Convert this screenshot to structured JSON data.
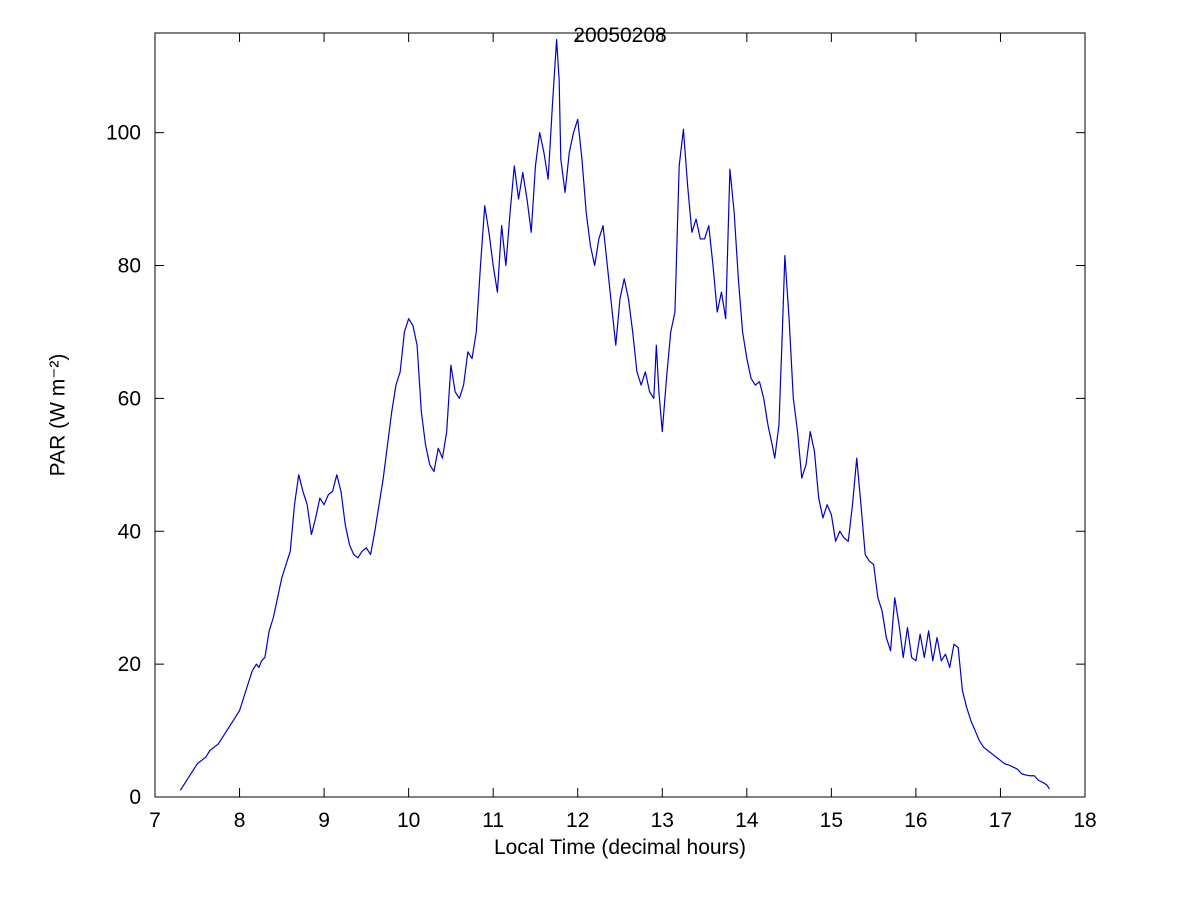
{
  "chart_data": {
    "type": "line",
    "title": "20050208",
    "xlabel": "Local Time (decimal hours)",
    "ylabel": "PAR (W m⁻²)",
    "xlim": [
      7,
      18
    ],
    "ylim": [
      0,
      115
    ],
    "xticks": [
      7,
      8,
      9,
      10,
      11,
      12,
      13,
      14,
      15,
      16,
      17,
      18
    ],
    "yticks": [
      0,
      20,
      40,
      60,
      80,
      100
    ],
    "grid": false,
    "legend": "none",
    "line_color": "#0000CC",
    "x": [
      7.3,
      7.35,
      7.4,
      7.45,
      7.5,
      7.55,
      7.6,
      7.65,
      7.7,
      7.75,
      7.8,
      7.85,
      7.9,
      7.95,
      8.0,
      8.05,
      8.1,
      8.15,
      8.2,
      8.23,
      8.26,
      8.3,
      8.35,
      8.4,
      8.45,
      8.5,
      8.55,
      8.6,
      8.65,
      8.7,
      8.75,
      8.8,
      8.85,
      8.9,
      8.95,
      9.0,
      9.05,
      9.1,
      9.15,
      9.2,
      9.25,
      9.3,
      9.35,
      9.4,
      9.45,
      9.5,
      9.55,
      9.6,
      9.65,
      9.7,
      9.75,
      9.8,
      9.85,
      9.9,
      9.95,
      10.0,
      10.05,
      10.1,
      10.15,
      10.2,
      10.25,
      10.3,
      10.35,
      10.4,
      10.45,
      10.5,
      10.55,
      10.6,
      10.65,
      10.7,
      10.75,
      10.8,
      10.85,
      10.9,
      10.95,
      11.0,
      11.05,
      11.1,
      11.15,
      11.2,
      11.25,
      11.3,
      11.35,
      11.4,
      11.45,
      11.5,
      11.55,
      11.6,
      11.65,
      11.7,
      11.75,
      11.78,
      11.8,
      11.85,
      11.9,
      11.95,
      12.0,
      12.05,
      12.1,
      12.15,
      12.2,
      12.25,
      12.3,
      12.35,
      12.4,
      12.45,
      12.5,
      12.55,
      12.6,
      12.65,
      12.7,
      12.75,
      12.8,
      12.85,
      12.9,
      12.93,
      12.96,
      13.0,
      13.05,
      13.1,
      13.15,
      13.2,
      13.25,
      13.3,
      13.35,
      13.4,
      13.45,
      13.5,
      13.55,
      13.6,
      13.65,
      13.7,
      13.75,
      13.8,
      13.85,
      13.9,
      13.95,
      14.0,
      14.05,
      14.1,
      14.15,
      14.2,
      14.25,
      14.3,
      14.33,
      14.38,
      14.42,
      14.45,
      14.5,
      14.55,
      14.6,
      14.65,
      14.7,
      14.75,
      14.8,
      14.85,
      14.9,
      14.95,
      15.0,
      15.05,
      15.1,
      15.15,
      15.2,
      15.25,
      15.3,
      15.35,
      15.4,
      15.45,
      15.5,
      15.55,
      15.6,
      15.65,
      15.7,
      15.75,
      15.8,
      15.85,
      15.9,
      15.95,
      16.0,
      16.05,
      16.1,
      16.15,
      16.2,
      16.25,
      16.3,
      16.35,
      16.4,
      16.45,
      16.5,
      16.55,
      16.6,
      16.65,
      16.7,
      16.75,
      16.8,
      16.85,
      16.9,
      16.95,
      17.0,
      17.05,
      17.1,
      17.15,
      17.2,
      17.25,
      17.3,
      17.35,
      17.4,
      17.45,
      17.5,
      17.55,
      17.58
    ],
    "y": [
      1,
      2,
      3,
      4,
      5,
      5.5,
      6,
      7,
      7.5,
      8,
      9,
      10,
      11,
      12,
      13,
      15,
      17,
      19,
      20,
      19.5,
      20.5,
      21,
      25,
      27,
      30,
      33,
      35,
      37,
      44,
      48.5,
      46,
      44,
      39.5,
      42,
      45,
      44,
      45.5,
      46,
      48.5,
      46,
      41,
      38,
      36.5,
      36,
      37,
      37.5,
      36.5,
      40,
      44,
      48,
      53,
      58,
      62,
      64,
      70,
      72,
      71,
      68,
      58,
      53,
      50,
      49,
      52.5,
      51,
      55,
      65,
      61,
      60,
      62,
      67,
      66,
      70,
      80,
      89,
      85,
      80,
      76,
      86,
      80,
      88,
      95,
      90,
      94,
      90,
      85,
      95,
      100,
      97,
      93,
      104,
      114,
      108,
      96,
      91,
      97,
      100,
      102,
      96,
      88,
      83,
      80,
      84,
      86,
      80,
      74,
      68,
      75,
      78,
      75,
      70,
      64,
      62,
      64,
      61,
      60,
      68,
      61,
      55,
      63,
      70,
      73,
      95,
      100.5,
      92,
      85,
      87,
      84,
      84,
      86,
      80,
      73,
      76,
      72,
      94.5,
      88,
      78,
      70,
      66,
      63,
      62,
      62.5,
      60,
      56,
      53,
      51,
      56,
      70,
      81.5,
      72,
      60,
      55,
      48,
      50,
      55,
      52,
      45,
      42,
      44,
      42.5,
      38.5,
      40,
      39,
      38.5,
      44,
      51,
      44,
      36.5,
      35.5,
      35,
      30,
      28,
      24,
      22,
      30,
      26,
      21,
      25.5,
      21,
      20.5,
      24.5,
      21,
      25,
      20.5,
      24,
      20.5,
      21.5,
      19.5,
      23,
      22.5,
      16,
      13.5,
      11.5,
      10,
      8.5,
      7.5,
      7,
      6.5,
      6,
      5.5,
      5,
      4.8,
      4.5,
      4.2,
      3.5,
      3.3,
      3.2,
      3.2,
      2.5,
      2.2,
      1.8,
      1.2
    ]
  }
}
